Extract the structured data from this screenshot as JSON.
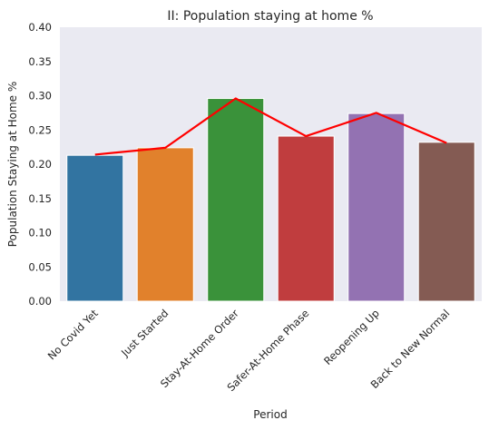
{
  "chart_data": {
    "type": "bar",
    "title": "II: Population staying at home %",
    "xlabel": "Period",
    "ylabel": "Population Staying at Home %",
    "categories": [
      "No Covid Yet",
      "Just Started",
      "Stay-At-Home Order",
      "Safer-At-Home Phase",
      "Reopening Up",
      "Back to New Normal"
    ],
    "values": [
      0.213,
      0.224,
      0.296,
      0.241,
      0.274,
      0.232
    ],
    "line_values": [
      0.214,
      0.224,
      0.296,
      0.241,
      0.275,
      0.231
    ],
    "bar_colors": [
      "#3274a1",
      "#e1812c",
      "#3a923a",
      "#c03d3e",
      "#9372b2",
      "#845b53"
    ],
    "line_color": "#ff0000",
    "ylim": [
      0,
      0.4
    ],
    "yticks": [
      0.0,
      0.05,
      0.1,
      0.15,
      0.2,
      0.25,
      0.3,
      0.35,
      0.4
    ],
    "ytick_labels": [
      "0.00",
      "0.05",
      "0.10",
      "0.15",
      "0.20",
      "0.25",
      "0.30",
      "0.35",
      "0.40"
    ],
    "background_color": "#eaeaf2",
    "grid": false,
    "legend": "none"
  }
}
